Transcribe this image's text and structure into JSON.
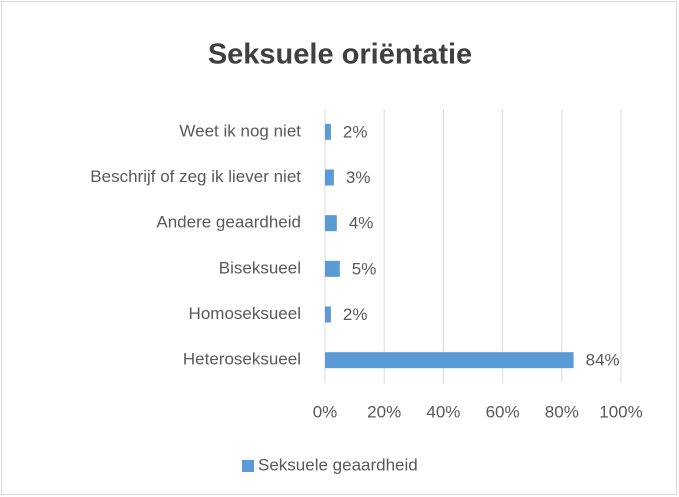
{
  "chart_data": {
    "type": "bar",
    "orientation": "horizontal",
    "title": "Seksuele oriëntatie",
    "categories": [
      "Weet ik nog niet",
      "Beschrijf of zeg ik liever niet",
      "Andere geaardheid",
      "Biseksueel",
      "Homoseksueel",
      "Heteroseksueel"
    ],
    "series": [
      {
        "name": "Seksuele geaardheid",
        "color": "#5b9bd5",
        "values": [
          2,
          3,
          4,
          5,
          2,
          84
        ],
        "value_labels": [
          "2%",
          "3%",
          "4%",
          "5%",
          "2%",
          "84%"
        ]
      }
    ],
    "xlim": [
      0,
      100
    ],
    "xticks": [
      {
        "value": 0,
        "label": "0%"
      },
      {
        "value": 20,
        "label": "20%"
      },
      {
        "value": 40,
        "label": "40%"
      },
      {
        "value": 60,
        "label": "60%"
      },
      {
        "value": 80,
        "label": "80%"
      },
      {
        "value": 100,
        "label": "100%"
      }
    ],
    "grid": true,
    "legend": "bottom"
  }
}
